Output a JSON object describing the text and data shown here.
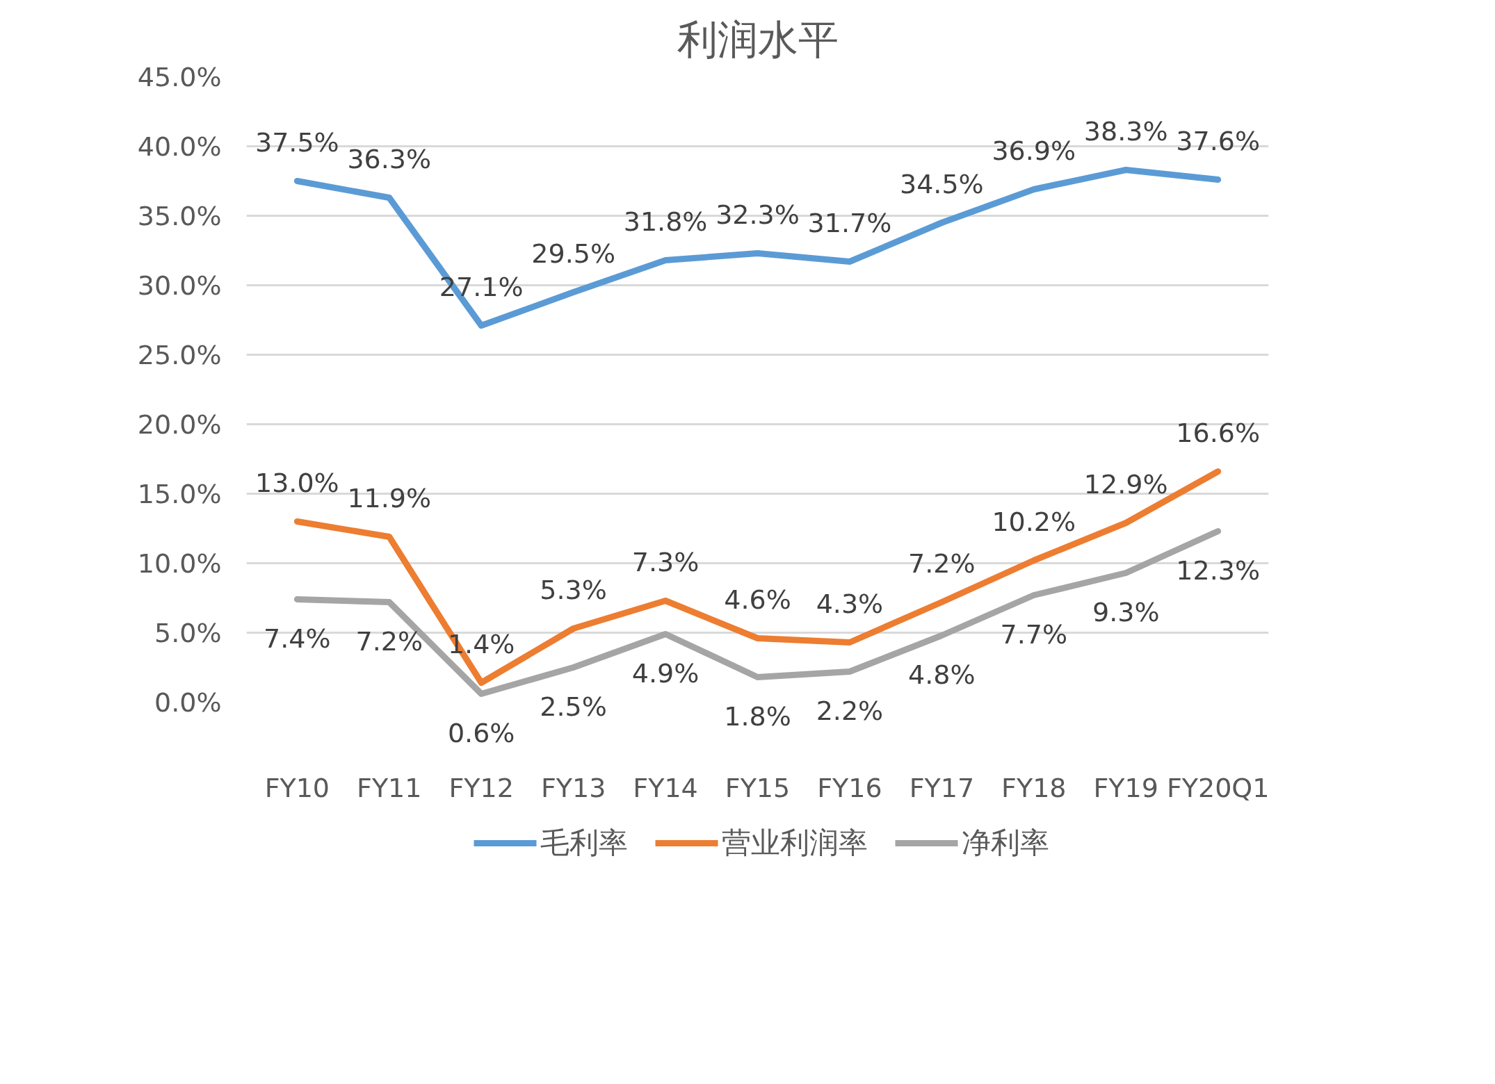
{
  "chart_data": {
    "type": "line",
    "title": "利润水平",
    "categories": [
      "FY10",
      "FY11",
      "FY12",
      "FY13",
      "FY14",
      "FY15",
      "FY16",
      "FY17",
      "FY18",
      "FY19",
      "FY20Q1"
    ],
    "series": [
      {
        "name": "毛利率",
        "color": "#5b9bd5",
        "values": [
          37.5,
          36.3,
          27.1,
          29.5,
          31.8,
          32.3,
          31.7,
          34.5,
          36.9,
          38.3,
          37.6
        ],
        "value_labels": [
          "37.5%",
          "36.3%",
          "27.1%",
          "29.5%",
          "31.8%",
          "32.3%",
          "31.7%",
          "34.5%",
          "36.9%",
          "38.3%",
          "37.6%"
        ]
      },
      {
        "name": "营业利润率",
        "color": "#ed7d31",
        "values": [
          13.0,
          11.9,
          1.4,
          5.3,
          7.3,
          4.6,
          4.3,
          7.2,
          10.2,
          12.9,
          16.6
        ],
        "value_labels": [
          "13.0%",
          "11.9%",
          "1.4%",
          "5.3%",
          "7.3%",
          "4.6%",
          "4.3%",
          "7.2%",
          "10.2%",
          "12.9%",
          "16.6%"
        ]
      },
      {
        "name": "净利率",
        "color": "#a5a5a5",
        "values": [
          7.4,
          7.2,
          0.6,
          2.5,
          4.9,
          1.8,
          2.2,
          4.8,
          7.7,
          9.3,
          12.3
        ],
        "value_labels": [
          "7.4%",
          "7.2%",
          "0.6%",
          "2.5%",
          "4.9%",
          "1.8%",
          "2.2%",
          "4.8%",
          "7.7%",
          "9.3%",
          "12.3%"
        ]
      }
    ],
    "ylim": [
      0,
      45
    ],
    "yticks": [
      {
        "value": 0,
        "label": "0.0%"
      },
      {
        "value": 5,
        "label": "5.0%"
      },
      {
        "value": 10,
        "label": "10.0%"
      },
      {
        "value": 15,
        "label": "15.0%"
      },
      {
        "value": 20,
        "label": "20.0%"
      },
      {
        "value": 25,
        "label": "25.0%"
      },
      {
        "value": 30,
        "label": "30.0%"
      },
      {
        "value": 35,
        "label": "35.0%"
      },
      {
        "value": 40,
        "label": "40.0%"
      },
      {
        "value": 45,
        "label": "45.0%"
      }
    ],
    "grid": "y",
    "legend": "bottom",
    "line_style": "solid"
  }
}
